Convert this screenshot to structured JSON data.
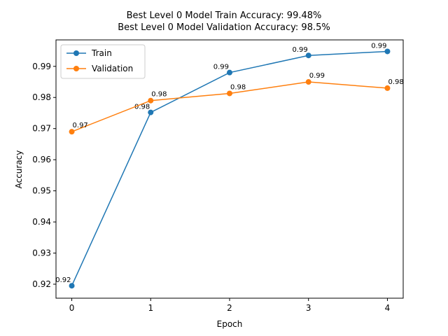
{
  "chart_data": {
    "type": "line",
    "title_lines": [
      "Best Level 0 Model Train Accuracy: 99.48%",
      "Best Level 0 Model Validation Accuracy: 98.5%"
    ],
    "xlabel": "Epoch",
    "ylabel": "Accuracy",
    "x": [
      0,
      1,
      2,
      3,
      4
    ],
    "xlim": [
      -0.2,
      4.2
    ],
    "ylim": [
      0.9155,
      0.9985
    ],
    "xticks": [
      "0",
      "1",
      "2",
      "3",
      "4"
    ],
    "yticks": [
      "0.92",
      "0.93",
      "0.94",
      "0.95",
      "0.96",
      "0.97",
      "0.98",
      "0.99"
    ],
    "grid": false,
    "legend_position": "top-left",
    "series": [
      {
        "name": "Train",
        "color": "#1f77b4",
        "values": [
          0.9195,
          0.9752,
          0.988,
          0.9935,
          0.9948
        ],
        "labels": [
          "0.92",
          "0.98",
          "0.99",
          "0.99",
          "0.99"
        ]
      },
      {
        "name": "Validation",
        "color": "#ff7f0e",
        "values": [
          0.969,
          0.979,
          0.9813,
          0.985,
          0.983
        ],
        "labels": [
          "0.97",
          "0.98",
          "0.98",
          "0.99",
          "0.98"
        ]
      }
    ]
  }
}
